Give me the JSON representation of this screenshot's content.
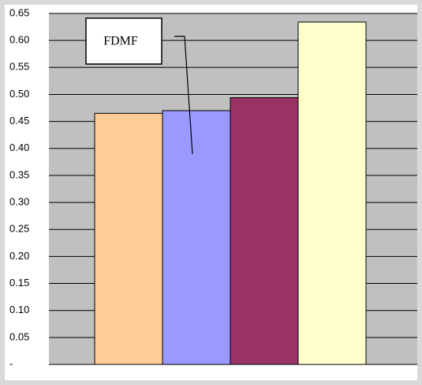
{
  "chart_data": {
    "type": "bar",
    "title": "",
    "xlabel": "",
    "ylabel": "",
    "ylim": [
      0,
      0.65
    ],
    "yticks": [
      0,
      0.05,
      0.1,
      0.15,
      0.2,
      0.25,
      0.3,
      0.35,
      0.4,
      0.45,
      0.5,
      0.55,
      0.6,
      0.65
    ],
    "ytick_labels": [
      "-",
      "0.05",
      "0.10",
      "0.15",
      "0.20",
      "0.25",
      "0.30",
      "0.35",
      "0.40",
      "0.45",
      "0.50",
      "0.55",
      "0.60",
      "0.65"
    ],
    "grid": true,
    "plot_background": "#c0c0c0",
    "gridline_color": "#000000",
    "values": [
      0.465,
      0.47,
      0.494,
      0.634
    ],
    "colors": [
      "#ffcc99",
      "#9999ff",
      "#993366",
      "#ffffcc"
    ],
    "annotation": {
      "text": "FDMF",
      "target_index": 1
    }
  }
}
